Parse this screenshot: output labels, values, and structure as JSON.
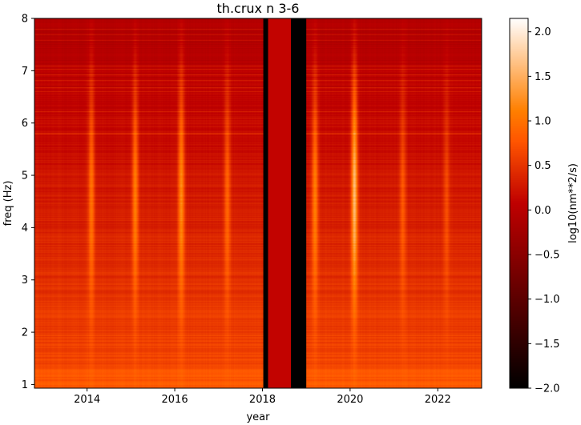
{
  "chart_data": {
    "type": "heatmap",
    "title": "th.crux n 3-6",
    "xlabel": "year",
    "ylabel": "freq (Hz)",
    "xlim": [
      2012.8,
      2023.0
    ],
    "ylim": [
      0.93,
      8.0
    ],
    "xticks": [
      {
        "value": 2014,
        "label": "2014"
      },
      {
        "value": 2016,
        "label": "2016"
      },
      {
        "value": 2018,
        "label": "2018"
      },
      {
        "value": 2020,
        "label": "2020"
      },
      {
        "value": 2022,
        "label": "2022"
      }
    ],
    "yticks": [
      {
        "value": 1,
        "label": "1"
      },
      {
        "value": 2,
        "label": "2"
      },
      {
        "value": 3,
        "label": "3"
      },
      {
        "value": 4,
        "label": "4"
      },
      {
        "value": 5,
        "label": "5"
      },
      {
        "value": 6,
        "label": "6"
      },
      {
        "value": 7,
        "label": "7"
      },
      {
        "value": 8,
        "label": "8"
      }
    ],
    "colorbar": {
      "label": "log10(nm**2/s)",
      "range": [
        -2.0,
        2.15
      ],
      "colormap": "gist_heat",
      "ticks": [
        {
          "value": 2.0,
          "label": "2.0"
        },
        {
          "value": 1.5,
          "label": "1.5"
        },
        {
          "value": 1.0,
          "label": "1.0"
        },
        {
          "value": 0.5,
          "label": "0.5"
        },
        {
          "value": 0.0,
          "label": "0.0"
        },
        {
          "value": -0.5,
          "label": "−0.5"
        },
        {
          "value": -1.0,
          "label": "−1.0"
        },
        {
          "value": -1.5,
          "label": "−1.5"
        },
        {
          "value": -2.0,
          "label": "−2.0"
        }
      ]
    },
    "gaps": [
      {
        "x0": 2018.02,
        "x1": 2018.13,
        "value": -2.0
      },
      {
        "x0": 2018.13,
        "x1": 2018.65,
        "value": 0.1
      },
      {
        "x0": 2018.65,
        "x1": 2019.0,
        "value": -2.0
      }
    ],
    "seasonal_peaks": [
      {
        "year": 2014.1,
        "value": 1.2
      },
      {
        "year": 2015.1,
        "value": 1.3
      },
      {
        "year": 2016.15,
        "value": 1.4
      },
      {
        "year": 2017.2,
        "value": 1.1
      },
      {
        "year": 2019.2,
        "value": 1.3
      },
      {
        "year": 2020.1,
        "value": 1.8
      },
      {
        "year": 2021.2,
        "value": 1.0
      },
      {
        "year": 2022.2,
        "value": 0.9
      }
    ]
  }
}
